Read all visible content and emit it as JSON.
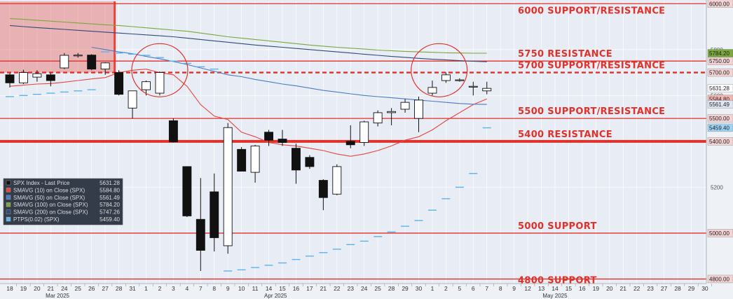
{
  "chart_data": {
    "type": "candlestick",
    "ylim": [
      4780,
      6010
    ],
    "x_labels": [
      "18",
      "19",
      "20",
      "21",
      "24",
      "25",
      "26",
      "27",
      "28",
      "31",
      "1",
      "2",
      "3",
      "4",
      "7",
      "8",
      "9",
      "10",
      "11",
      "14",
      "15",
      "16",
      "17",
      "21",
      "22",
      "23",
      "24",
      "25",
      "28",
      "29",
      "30",
      "1",
      "2",
      "5",
      "6",
      "7",
      "8",
      "9",
      "12",
      "13",
      "14",
      "15",
      "16",
      "19",
      "20",
      "21",
      "22",
      "23",
      "27",
      "28",
      "29",
      "30"
    ],
    "months": [
      {
        "label": "Mar 2025",
        "at": 3.5
      },
      {
        "label": "Apr 2025",
        "at": 19.5
      },
      {
        "label": "May 2025",
        "at": 40
      }
    ],
    "y_ticks": [
      4800,
      5000,
      5200,
      5400,
      5600,
      5800,
      6000
    ],
    "y_tick_labels": {
      "5200": "5200",
      "5600": "5600",
      "5800": "5800"
    },
    "candles": [
      {
        "o": 5690,
        "h": 5698,
        "l": 5635,
        "c": 5655
      },
      {
        "o": 5655,
        "h": 5712,
        "l": 5650,
        "c": 5700
      },
      {
        "o": 5680,
        "h": 5710,
        "l": 5660,
        "c": 5695
      },
      {
        "o": 5690,
        "h": 5700,
        "l": 5640,
        "c": 5665
      },
      {
        "o": 5720,
        "h": 5785,
        "l": 5715,
        "c": 5775
      },
      {
        "o": 5775,
        "h": 5785,
        "l": 5765,
        "c": 5776
      },
      {
        "o": 5776,
        "h": 5780,
        "l": 5710,
        "c": 5715
      },
      {
        "o": 5715,
        "h": 5745,
        "l": 5690,
        "c": 5742
      },
      {
        "o": 5700,
        "h": 5710,
        "l": 5600,
        "c": 5605
      },
      {
        "o": 5545,
        "h": 5620,
        "l": 5500,
        "c": 5620
      },
      {
        "o": 5625,
        "h": 5665,
        "l": 5600,
        "c": 5660
      },
      {
        "o": 5610,
        "h": 5705,
        "l": 5600,
        "c": 5700
      },
      {
        "o": 5490,
        "h": 5500,
        "l": 5395,
        "c": 5398
      },
      {
        "o": 5290,
        "h": 5290,
        "l": 5070,
        "c": 5075
      },
      {
        "o": 5060,
        "h": 5240,
        "l": 4835,
        "c": 4925
      },
      {
        "o": 5180,
        "h": 5260,
        "l": 4920,
        "c": 4980
      },
      {
        "o": 4945,
        "h": 5480,
        "l": 4910,
        "c": 5460
      },
      {
        "o": 5365,
        "h": 5375,
        "l": 5270,
        "c": 5270
      },
      {
        "o": 5265,
        "h": 5385,
        "l": 5220,
        "c": 5380
      },
      {
        "o": 5440,
        "h": 5450,
        "l": 5380,
        "c": 5405
      },
      {
        "o": 5410,
        "h": 5450,
        "l": 5380,
        "c": 5395
      },
      {
        "o": 5370,
        "h": 5390,
        "l": 5215,
        "c": 5275
      },
      {
        "o": 5330,
        "h": 5340,
        "l": 5280,
        "c": 5290
      },
      {
        "o": 5230,
        "h": 5235,
        "l": 5100,
        "c": 5155
      },
      {
        "o": 5170,
        "h": 5300,
        "l": 5165,
        "c": 5290
      },
      {
        "o": 5400,
        "h": 5470,
        "l": 5370,
        "c": 5385
      },
      {
        "o": 5395,
        "h": 5490,
        "l": 5380,
        "c": 5485
      },
      {
        "o": 5480,
        "h": 5535,
        "l": 5465,
        "c": 5525
      },
      {
        "o": 5525,
        "h": 5545,
        "l": 5470,
        "c": 5530
      },
      {
        "o": 5540,
        "h": 5585,
        "l": 5525,
        "c": 5570
      },
      {
        "o": 5500,
        "h": 5595,
        "l": 5440,
        "c": 5580
      },
      {
        "o": 5610,
        "h": 5665,
        "l": 5600,
        "c": 5635
      },
      {
        "o": 5665,
        "h": 5700,
        "l": 5655,
        "c": 5690
      },
      {
        "o": 5665,
        "h": 5675,
        "l": 5660,
        "c": 5668
      },
      {
        "o": 5640,
        "h": 5660,
        "l": 5600,
        "c": 5640
      },
      {
        "o": 5620,
        "h": 5660,
        "l": 5605,
        "c": 5631
      }
    ],
    "series": [
      {
        "name": "SMAVG (10)  on Close (SPX)",
        "color": "#e8453c",
        "values": [
          5640,
          5645,
          5650,
          5652,
          5658,
          5665,
          5672,
          5678,
          5700,
          5710,
          5715,
          5700,
          5690,
          5640,
          5560,
          5510,
          5495,
          5440,
          5420,
          5395,
          5385,
          5380,
          5370,
          5360,
          5345,
          5335,
          5345,
          5360,
          5380,
          5405,
          5420,
          5450,
          5490,
          5525,
          5560,
          5585
        ]
      },
      {
        "name": "SMAVG (50)  on Close (SPX)",
        "color": "#4a7bc4",
        "values": [
          null,
          null,
          null,
          null,
          null,
          null,
          5810,
          5800,
          5790,
          5782,
          5770,
          5760,
          5748,
          5735,
          5720,
          5705,
          5690,
          5682,
          5670,
          5660,
          5650,
          5642,
          5632,
          5622,
          5615,
          5607,
          5600,
          5595,
          5590,
          5585,
          5580,
          5575,
          5570,
          5565,
          5562,
          5561
        ]
      },
      {
        "name": "SMAVG (100)  on Close (SPX)",
        "color": "#7aa83a",
        "values": [
          5935,
          5932,
          5928,
          5924,
          5920,
          5916,
          5912,
          5908,
          5905,
          5900,
          5895,
          5890,
          5885,
          5880,
          5872,
          5864,
          5856,
          5850,
          5844,
          5838,
          5832,
          5826,
          5820,
          5815,
          5810,
          5806,
          5802,
          5798,
          5795,
          5792,
          5790,
          5788,
          5786,
          5785,
          5784,
          5784
        ]
      },
      {
        "name": "SMAVG (200)  on Close (SPX)",
        "color": "#2e4a78",
        "values": [
          5905,
          5900,
          5896,
          5892,
          5888,
          5884,
          5880,
          5876,
          5872,
          5868,
          5864,
          5860,
          5856,
          5850,
          5844,
          5838,
          5832,
          5826,
          5820,
          5815,
          5810,
          5805,
          5800,
          5795,
          5790,
          5785,
          5780,
          5775,
          5770,
          5766,
          5762,
          5758,
          5755,
          5752,
          5749,
          5747
        ]
      },
      {
        "name": "PTPS(0.02)  (SPX)",
        "color": "#5bb4f0",
        "marker": "dash",
        "values": [
          5595,
          5600,
          5605,
          5610,
          5615,
          5620,
          5625,
          5790,
          5785,
          5780,
          5775,
          5765,
          5750,
          5740,
          5725,
          5715,
          4835,
          4840,
          4850,
          4860,
          4870,
          4885,
          4900,
          4915,
          4930,
          4950,
          4965,
          4985,
          5005,
          5030,
          5055,
          5100,
          5150,
          5200,
          5260,
          5459
        ]
      }
    ],
    "legend": {
      "placement": "left",
      "entries": [
        {
          "name": "SPX Index - Last Price",
          "value": "5631.28",
          "color": "#111111"
        },
        {
          "name": "SMAVG (10)  on Close (SPX)",
          "value": "5584.80",
          "color": "#e8453c"
        },
        {
          "name": "SMAVG (50)  on Close (SPX)",
          "value": "5561.49",
          "color": "#4a7bc4"
        },
        {
          "name": "SMAVG (100)  on Close (SPX)",
          "value": "5784.20",
          "color": "#7aa83a"
        },
        {
          "name": "SMAVG (200)  on Close (SPX)",
          "value": "5747.26",
          "color": "#2e4a78"
        },
        {
          "name": "PTPS(0.02)  (SPX)",
          "value": "5459.40",
          "color": "#5bb4f0"
        }
      ]
    },
    "levels": [
      {
        "value": 6000,
        "label": "6000 SUPPORT/RESISTANCE",
        "style": "solid"
      },
      {
        "value": 5750,
        "label": "5750 RESISTANCE",
        "style": "solid"
      },
      {
        "value": 5700,
        "label": "5700 SUPPORT/RESISTANCE",
        "style": "dashed"
      },
      {
        "value": 5500,
        "label": "5500 SUPPORT/RESISTANCE",
        "style": "solid"
      },
      {
        "value": 5400,
        "label": "5400 RESISTANCE",
        "style": "thick"
      },
      {
        "value": 5000,
        "label": "5000 SUPPORT",
        "style": "solid"
      },
      {
        "value": 4800,
        "label": "4800 SUPPORT",
        "style": "solid"
      }
    ],
    "value_tags": [
      {
        "value": 6000,
        "text": "6000.00",
        "bg": "#f3d3d3"
      },
      {
        "value": 5784.2,
        "text": "5784.20",
        "bg": "#7aa83a"
      },
      {
        "value": 5750,
        "text": "5750.00",
        "bg": "#f3d3d3"
      },
      {
        "value": 5700,
        "text": "5700.00",
        "bg": "#f3d3d3"
      },
      {
        "value": 5631.28,
        "text": "5631.28",
        "bg": "#ffffff"
      },
      {
        "value": 5584.8,
        "text": "5584.80",
        "bg": "#f3b5b0"
      },
      {
        "value": 5561.49,
        "text": "5561.49",
        "bg": "#dfe6f2"
      },
      {
        "value": 5500,
        "text": "5500.00",
        "bg": "#f3d3d3"
      },
      {
        "value": 5459.4,
        "text": "5459.40",
        "bg": "#9fd3f5"
      },
      {
        "value": 5400,
        "text": "5400.00",
        "bg": "#f3d3d3"
      },
      {
        "value": 5000,
        "text": "5000.00",
        "bg": "#f3d3d3"
      },
      {
        "value": 4800,
        "text": "4800.00",
        "bg": "#f3d3d3"
      }
    ],
    "highlight_zone": {
      "from_index": 0,
      "to_index": 8,
      "y_from": 5700,
      "y_to": 6010,
      "color": "#e8453c"
    },
    "circles": [
      {
        "center_index": 11,
        "center_value": 5710
      },
      {
        "center_index": 31.5,
        "center_value": 5710
      }
    ],
    "colors": {
      "level_line": "#e0312a",
      "up_fill": "#ffffff",
      "down_fill": "#111111",
      "background": "#e8ecf4",
      "grid": "#ffffff"
    }
  }
}
